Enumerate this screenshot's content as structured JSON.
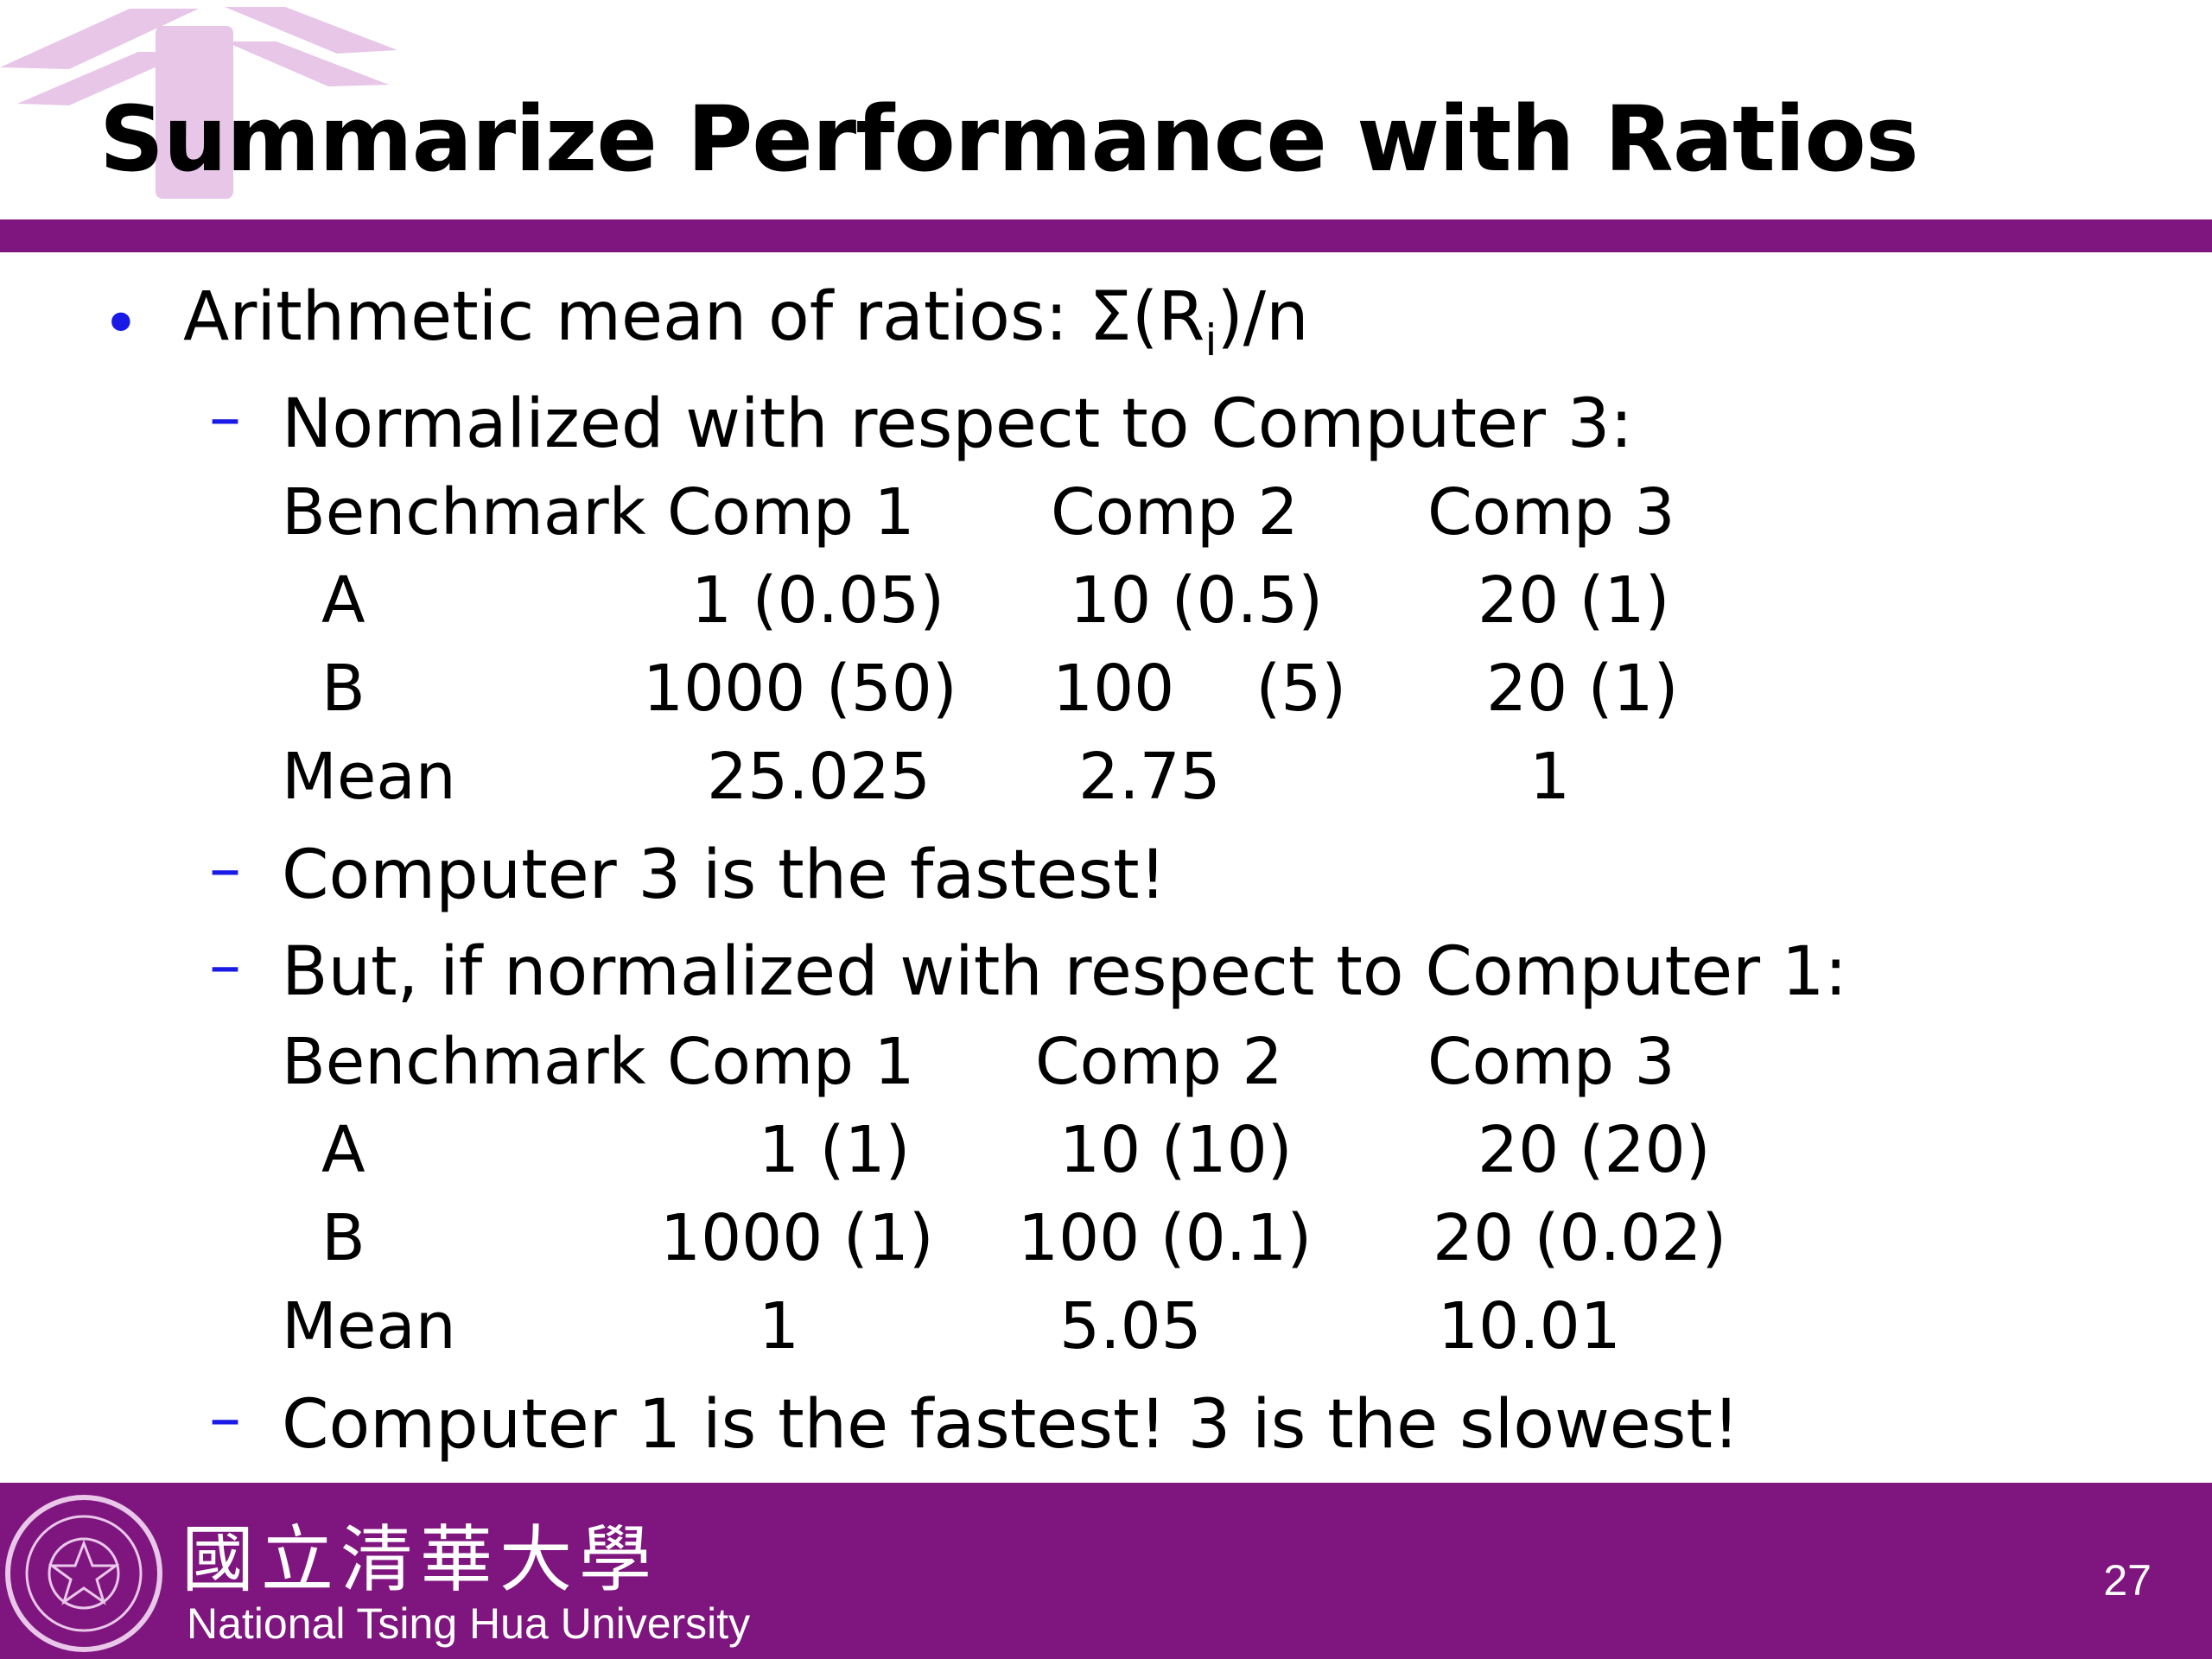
{
  "title": "Summarize Performance with Ratios",
  "bullet": {
    "text_before": "Arithmetic mean of ratios: Σ(R",
    "subscript": "i",
    "text_after": ")/n"
  },
  "sub1": "Normalized with respect to Computer 3:",
  "table1": {
    "headers": [
      "Benchmark",
      "Comp 1",
      "Comp 2",
      "Comp 3"
    ],
    "rows": [
      [
        "A",
        "1 (0.05)",
        "10 (0.5)",
        "20 (1)"
      ],
      [
        "B",
        "1000 (50)",
        "100    (5)",
        "20 (1)"
      ],
      [
        "Mean",
        "25.025",
        "2.75",
        "1"
      ]
    ]
  },
  "sub2": "Computer 3 is the fastest!",
  "sub3": "But, if normalized with respect to Computer 1:",
  "table2": {
    "headers": [
      "Benchmark",
      "Comp 1",
      "Comp 2",
      "Comp 3"
    ],
    "rows": [
      [
        "A",
        "1 (1)",
        "10 (10)",
        "20 (20)"
      ],
      [
        "B",
        "1000 (1)",
        "100 (0.1)",
        "20 (0.02)"
      ],
      [
        "Mean",
        "1",
        "5.05",
        "10.01"
      ]
    ]
  },
  "sub4": "Computer 1 is the fastest! 3 is the slowest!",
  "footer": {
    "university_cn": "國立清華大學",
    "university_en": "National Tsing Hua University",
    "page_number": "27"
  },
  "colors": {
    "accent": "#7f157f",
    "bullet": "#1a1ae6"
  }
}
